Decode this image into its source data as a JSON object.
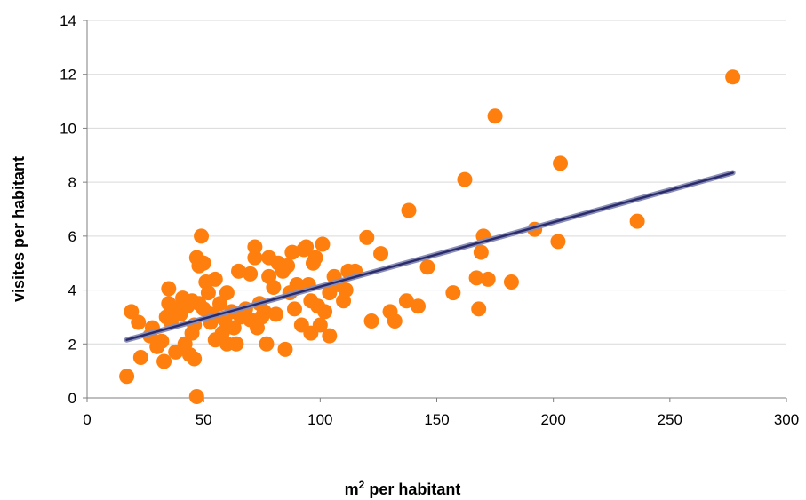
{
  "chart_data": {
    "type": "scatter",
    "title": "",
    "xlabel": "m",
    "xlabel_sup": "2",
    "xlabel_rest": " per habitant",
    "ylabel": "visites per habitant",
    "xlim": [
      0,
      300
    ],
    "ylim": [
      0,
      14
    ],
    "xticks": [
      0,
      50,
      100,
      150,
      200,
      250,
      300
    ],
    "yticks": [
      0,
      2,
      4,
      6,
      8,
      10,
      12,
      14
    ],
    "grid": "horizontal",
    "legend": "none",
    "point_color": "#ff7f0e",
    "trendline_color": "#2b2b6b",
    "trendline": {
      "x": [
        17,
        277
      ],
      "y": [
        2.15,
        8.35
      ]
    },
    "series": [
      {
        "points": [
          [
            17,
            0.8
          ],
          [
            19,
            3.2
          ],
          [
            22,
            2.8
          ],
          [
            23,
            1.5
          ],
          [
            27,
            2.3
          ],
          [
            28,
            2.6
          ],
          [
            30,
            1.9
          ],
          [
            32,
            2.1
          ],
          [
            33,
            1.35
          ],
          [
            34,
            3.0
          ],
          [
            35,
            4.05
          ],
          [
            35,
            3.5
          ],
          [
            36,
            2.8
          ],
          [
            38,
            3.3
          ],
          [
            38,
            1.7
          ],
          [
            40,
            3.1
          ],
          [
            41,
            3.7
          ],
          [
            42,
            2.0
          ],
          [
            43,
            3.4
          ],
          [
            44,
            1.6
          ],
          [
            45,
            2.4
          ],
          [
            45,
            3.6
          ],
          [
            46,
            1.45
          ],
          [
            46,
            2.7
          ],
          [
            47,
            5.2
          ],
          [
            47,
            0.05
          ],
          [
            48,
            3.5
          ],
          [
            48,
            4.9
          ],
          [
            49,
            6.0
          ],
          [
            50,
            3.3
          ],
          [
            50,
            5.0
          ],
          [
            51,
            4.3
          ],
          [
            52,
            3.9
          ],
          [
            53,
            2.8
          ],
          [
            54,
            3.1
          ],
          [
            55,
            2.15
          ],
          [
            55,
            4.4
          ],
          [
            57,
            3.5
          ],
          [
            58,
            2.4
          ],
          [
            59,
            2.9
          ],
          [
            60,
            2.0
          ],
          [
            60,
            3.9
          ],
          [
            62,
            3.2
          ],
          [
            63,
            2.6
          ],
          [
            64,
            2.0
          ],
          [
            65,
            4.7
          ],
          [
            66,
            3.0
          ],
          [
            68,
            3.3
          ],
          [
            70,
            4.6
          ],
          [
            70,
            2.9
          ],
          [
            72,
            5.6
          ],
          [
            72,
            5.2
          ],
          [
            73,
            2.6
          ],
          [
            74,
            3.5
          ],
          [
            75,
            3.0
          ],
          [
            76,
            3.2
          ],
          [
            77,
            2.0
          ],
          [
            78,
            5.2
          ],
          [
            78,
            4.5
          ],
          [
            80,
            4.1
          ],
          [
            81,
            3.1
          ],
          [
            82,
            5.0
          ],
          [
            84,
            4.7
          ],
          [
            85,
            1.8
          ],
          [
            86,
            4.9
          ],
          [
            87,
            3.9
          ],
          [
            88,
            5.4
          ],
          [
            89,
            3.3
          ],
          [
            90,
            4.2
          ],
          [
            92,
            2.7
          ],
          [
            93,
            5.5
          ],
          [
            94,
            5.6
          ],
          [
            95,
            4.2
          ],
          [
            96,
            2.4
          ],
          [
            96,
            3.6
          ],
          [
            97,
            5.0
          ],
          [
            98,
            5.2
          ],
          [
            99,
            3.4
          ],
          [
            100,
            2.7
          ],
          [
            101,
            5.7
          ],
          [
            102,
            3.2
          ],
          [
            104,
            2.3
          ],
          [
            104,
            3.9
          ],
          [
            106,
            4.5
          ],
          [
            108,
            4.2
          ],
          [
            110,
            3.6
          ],
          [
            111,
            4.0
          ],
          [
            112,
            4.7
          ],
          [
            115,
            4.7
          ],
          [
            120,
            5.95
          ],
          [
            122,
            2.85
          ],
          [
            126,
            5.35
          ],
          [
            130,
            3.2
          ],
          [
            132,
            2.85
          ],
          [
            137,
            3.6
          ],
          [
            138,
            6.95
          ],
          [
            142,
            3.4
          ],
          [
            146,
            4.85
          ],
          [
            157,
            3.9
          ],
          [
            162,
            8.1
          ],
          [
            167,
            4.45
          ],
          [
            168,
            3.3
          ],
          [
            169,
            5.4
          ],
          [
            170,
            6.0
          ],
          [
            172,
            4.4
          ],
          [
            175,
            10.45
          ],
          [
            182,
            4.3
          ],
          [
            192,
            6.25
          ],
          [
            202,
            5.8
          ],
          [
            203,
            8.7
          ],
          [
            236,
            6.55
          ],
          [
            277,
            11.9
          ]
        ]
      }
    ]
  }
}
